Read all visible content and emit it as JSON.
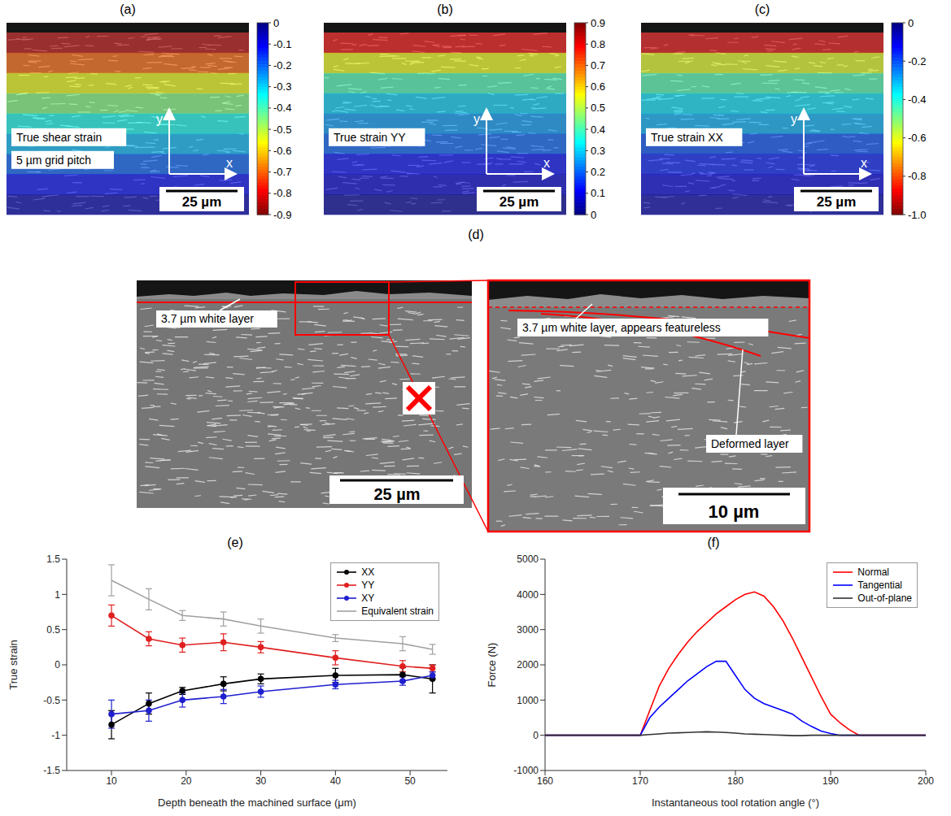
{
  "heatmaps": [
    {
      "letter": "(a)",
      "label": "True shear strain",
      "note": "5 µm grid pitch",
      "scale_bar": "25 µm",
      "axis_x": "x",
      "axis_y": "y",
      "cells": [
        -0.85,
        -0.7,
        -0.55,
        -0.45,
        -0.35,
        -0.28,
        -0.2,
        -0.12,
        -0.05
      ],
      "colorbar": {
        "range": [
          0,
          -0.9
        ],
        "ticks": [
          0,
          -0.1,
          -0.2,
          -0.3,
          -0.4,
          -0.5,
          -0.6,
          -0.7,
          -0.8,
          -0.9
        ]
      }
    },
    {
      "letter": "(b)",
      "label": "True strain YY",
      "scale_bar": "25 µm",
      "axis_x": "x",
      "axis_y": "y",
      "cells": [
        0.8,
        0.55,
        0.4,
        0.3,
        0.25,
        0.2,
        0.12,
        0.08,
        0.03
      ],
      "colorbar": {
        "range": [
          0,
          0.9
        ],
        "ticks": [
          0,
          0.1,
          0.2,
          0.3,
          0.4,
          0.5,
          0.6,
          0.7,
          0.8,
          0.9
        ]
      }
    },
    {
      "letter": "(c)",
      "label": "True strain XX",
      "scale_bar": "25 µm",
      "axis_x": "x",
      "axis_y": "y",
      "cells": [
        -0.9,
        -0.6,
        -0.45,
        -0.35,
        -0.3,
        -0.2,
        -0.15,
        -0.1,
        -0.05
      ],
      "colorbar": {
        "range": [
          0,
          -1
        ],
        "ticks": [
          0,
          -0.2,
          -0.4,
          -0.6,
          -0.8,
          {
            "value": -1,
            "label": "-1.0"
          }
        ]
      }
    }
  ],
  "micrograph": {
    "letter": "(d)",
    "overview_label": "3.7 µm white layer",
    "overview_scale_bar": "25 µm",
    "inset_labels": [
      "3.7 µm white layer, appears featureless",
      "Deformed layer"
    ],
    "inset_scale_bar": "10 µm"
  },
  "chart_data": [
    {
      "letter": "(e)",
      "type": "line",
      "x": [
        10,
        15,
        19.5,
        25,
        30,
        40,
        49,
        53
      ],
      "xlim": [
        4,
        55
      ],
      "xticks": [
        10,
        20,
        30,
        40,
        50
      ],
      "ylim": [
        -1.5,
        1.5
      ],
      "yticks": [
        -1.5,
        -1,
        -0.5,
        0,
        0.5,
        1,
        1.5
      ],
      "x_label": "Depth beneath the machined surface (μm)",
      "y_label": "True strain",
      "legend": "upper right",
      "grid": false,
      "series": [
        {
          "name": "XX",
          "color": "#000000",
          "marker": "circle",
          "line_style": "solid",
          "values": [
            -0.85,
            -0.55,
            -0.37,
            -0.27,
            -0.2,
            -0.15,
            -0.14,
            -0.2
          ],
          "errors": [
            0.2,
            0.15,
            0.05,
            0.1,
            0.07,
            0.1,
            0.1,
            0.2
          ]
        },
        {
          "name": "YY",
          "color": "#e02020",
          "marker": "circle",
          "line_style": "solid",
          "values": [
            0.7,
            0.37,
            0.28,
            0.32,
            0.25,
            0.1,
            -0.02,
            -0.05
          ],
          "errors": [
            0.15,
            0.1,
            0.1,
            0.12,
            0.08,
            0.1,
            0.08,
            0.05
          ]
        },
        {
          "name": "XY",
          "color": "#1f1fd0",
          "marker": "circle",
          "line_style": "solid",
          "values": [
            -0.7,
            -0.65,
            -0.5,
            -0.45,
            -0.38,
            -0.28,
            -0.23,
            -0.15
          ],
          "errors": [
            0.2,
            0.15,
            0.1,
            0.1,
            0.08,
            0.06,
            0.06,
            0.05
          ]
        },
        {
          "name": "Equivalent strain",
          "color": "#a0a0a0",
          "marker": "none",
          "line_style": "solid",
          "values": [
            1.2,
            0.93,
            0.7,
            0.65,
            0.55,
            0.38,
            0.3,
            0.22
          ],
          "errors": [
            0.22,
            0.15,
            0.07,
            0.1,
            0.1,
            0.05,
            0.1,
            0.07
          ]
        }
      ]
    },
    {
      "letter": "(f)",
      "type": "line",
      "x": [
        160,
        161,
        162,
        163,
        164,
        165,
        166,
        167,
        168,
        169,
        170,
        171,
        172,
        173,
        174,
        175,
        176,
        177,
        178,
        179,
        180,
        181,
        182,
        183,
        184,
        185,
        186,
        187,
        188,
        189,
        190,
        191,
        192,
        193,
        194,
        195,
        196,
        197,
        198,
        199,
        200
      ],
      "xlim": [
        160,
        200
      ],
      "xticks": [
        160,
        170,
        180,
        190,
        200
      ],
      "ylim": [
        -1000,
        5000
      ],
      "yticks": [
        -1000,
        0,
        1000,
        2000,
        3000,
        4000,
        5000
      ],
      "x_label": "Instantaneous tool rotation angle (°)",
      "y_label": "Force (N)",
      "legend": "upper right",
      "grid": false,
      "series": [
        {
          "name": "Normal",
          "color": "#ff0000",
          "marker": "none",
          "line_style": "solid",
          "values": [
            0,
            0,
            0,
            0,
            0,
            0,
            0,
            0,
            0,
            0,
            0,
            700,
            1400,
            1900,
            2300,
            2650,
            2950,
            3200,
            3450,
            3650,
            3850,
            4000,
            4070,
            3950,
            3650,
            3250,
            2750,
            2200,
            1650,
            1100,
            600,
            350,
            150,
            0,
            0,
            0,
            0,
            0,
            0,
            0,
            0
          ]
        },
        {
          "name": "Tangential",
          "color": "#0000ff",
          "marker": "none",
          "line_style": "solid",
          "values": [
            0,
            0,
            0,
            0,
            0,
            0,
            0,
            0,
            0,
            0,
            0,
            500,
            800,
            1050,
            1300,
            1550,
            1750,
            1950,
            2100,
            2100,
            1700,
            1300,
            1050,
            900,
            800,
            700,
            600,
            400,
            250,
            120,
            50,
            0,
            0,
            0,
            0,
            0,
            0,
            0,
            0,
            0,
            0
          ]
        },
        {
          "name": "Out-of-plane",
          "color": "#333333",
          "marker": "none",
          "line_style": "solid",
          "values": [
            0,
            0,
            0,
            0,
            0,
            0,
            0,
            0,
            0,
            0,
            0,
            20,
            40,
            60,
            70,
            80,
            90,
            100,
            90,
            80,
            60,
            40,
            30,
            20,
            10,
            0,
            -10,
            -10,
            0,
            0,
            0,
            0,
            0,
            0,
            0,
            0,
            0,
            0,
            0,
            0,
            0
          ]
        }
      ]
    }
  ]
}
